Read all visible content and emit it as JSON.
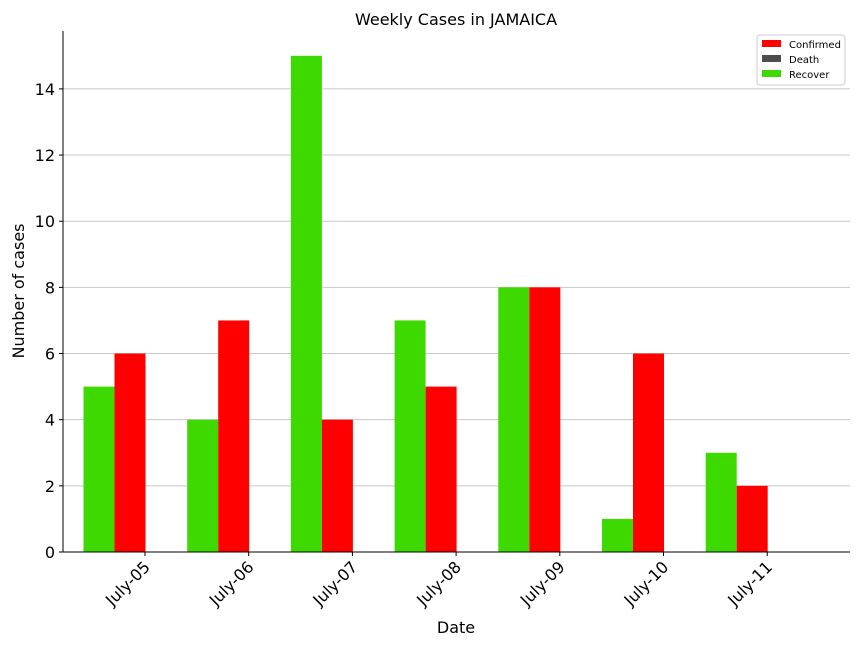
{
  "chart_data": {
    "type": "bar",
    "title": "Weekly Cases in JAMAICA",
    "xlabel": "Date",
    "ylabel": "Number of cases",
    "categories": [
      "July-05",
      "July-06",
      "July-07",
      "July-08",
      "July-09",
      "July-10",
      "July-11"
    ],
    "series": [
      {
        "name": "Confirmed",
        "color": "#ff0000",
        "values": [
          6,
          7,
          4,
          5,
          8,
          6,
          2
        ]
      },
      {
        "name": "Death",
        "color": "#4d4d4d",
        "values": [
          0,
          0,
          0,
          0,
          0,
          0,
          0
        ]
      },
      {
        "name": "Recover",
        "color": "#3dd900",
        "values": [
          5,
          4,
          15,
          7,
          8,
          1,
          3
        ]
      }
    ],
    "ylim": [
      0,
      15.75
    ],
    "yticks": [
      0,
      2,
      4,
      6,
      8,
      10,
      12,
      14
    ],
    "grid": "horizontal",
    "legend_position": "top-right"
  }
}
